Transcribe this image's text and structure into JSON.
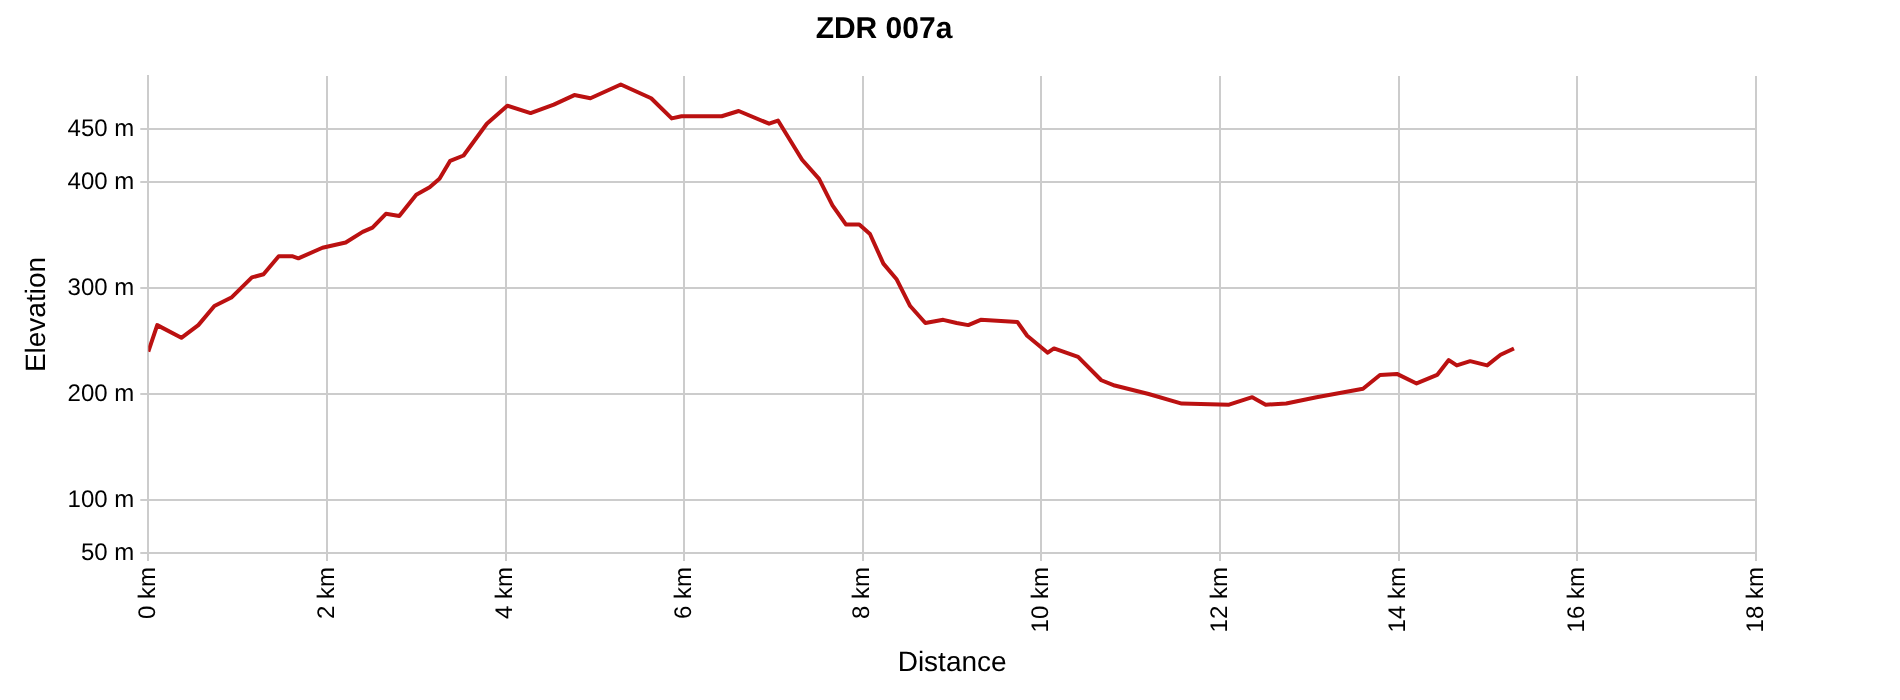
{
  "chart_data": {
    "type": "line",
    "title": "ZDR 007a",
    "xlabel": "Distance",
    "ylabel": "Elevation",
    "x": [
      0,
      0.1,
      0.37,
      0.56,
      0.74,
      0.93,
      1.16,
      1.29,
      1.46,
      1.61,
      1.68,
      1.95,
      2.21,
      2.4,
      2.51,
      2.66,
      2.81,
      3.0,
      3.15,
      3.26,
      3.38,
      3.53,
      3.79,
      4.02,
      4.28,
      4.54,
      4.77,
      4.95,
      5.29,
      5.63,
      5.86,
      5.97,
      6.42,
      6.61,
      6.95,
      7.05,
      7.32,
      7.51,
      7.66,
      7.81,
      7.96,
      8.08,
      8.23,
      8.38,
      8.53,
      8.7,
      8.9,
      9.05,
      9.18,
      9.32,
      9.73,
      9.84,
      10.07,
      10.14,
      10.41,
      10.67,
      10.82,
      11.2,
      11.57,
      12.1,
      12.36,
      12.51,
      12.74,
      13.08,
      13.6,
      13.79,
      13.98,
      14.2,
      14.43,
      14.56,
      14.65,
      14.8,
      14.99,
      15.14,
      15.29
    ],
    "series": [
      {
        "color": "#bb1111",
        "values": [
          240,
          265,
          253,
          265,
          283,
          291,
          310,
          313,
          330,
          330,
          328,
          338,
          343,
          353,
          357,
          370,
          368,
          388,
          395,
          403,
          420,
          425,
          455,
          472,
          465,
          473,
          482,
          479,
          492,
          479,
          460,
          462,
          462,
          467,
          455,
          458,
          421,
          403,
          378,
          360,
          360,
          351,
          323,
          308,
          283,
          267,
          270,
          267,
          265,
          270,
          268,
          255,
          239,
          243,
          235,
          213,
          208,
          200,
          191,
          190,
          197,
          190,
          191,
          197,
          205,
          218,
          219,
          210,
          218,
          232,
          227,
          231,
          227,
          237,
          243
        ]
      }
    ],
    "xlim": [
      0,
      18
    ],
    "xticks": [
      {
        "value": 0,
        "label": "0 km"
      },
      {
        "value": 2,
        "label": "2 km"
      },
      {
        "value": 4,
        "label": "4 km"
      },
      {
        "value": 6,
        "label": "6 km"
      },
      {
        "value": 8,
        "label": "8 km"
      },
      {
        "value": 10,
        "label": "10 km"
      },
      {
        "value": 12,
        "label": "12 km"
      },
      {
        "value": 14,
        "label": "14 km"
      },
      {
        "value": 16,
        "label": "16 km"
      },
      {
        "value": 18,
        "label": "18 km"
      }
    ],
    "ylim": [
      50,
      500
    ],
    "yticks": [
      {
        "value": 50,
        "label": "50 m"
      },
      {
        "value": 100,
        "label": "100 m"
      },
      {
        "value": 200,
        "label": "200 m"
      },
      {
        "value": 300,
        "label": "300 m"
      },
      {
        "value": 400,
        "label": "400 m"
      },
      {
        "value": 450,
        "label": "450 m"
      }
    ],
    "grid": true,
    "legend": false,
    "marker": "none",
    "line_style": "solid"
  }
}
